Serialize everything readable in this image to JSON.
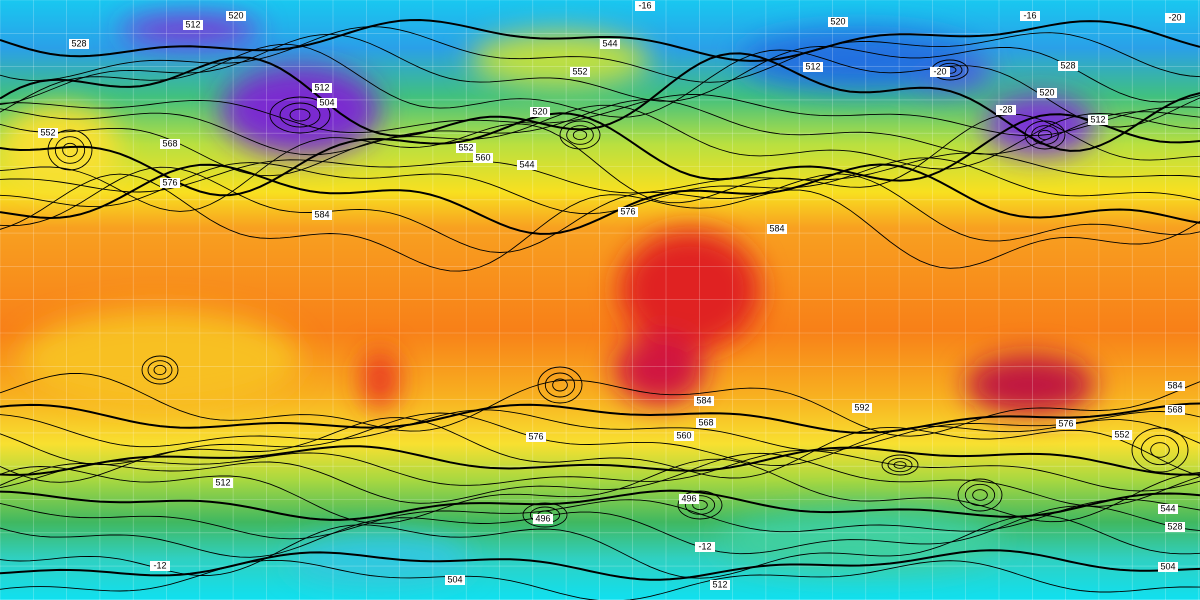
{
  "map": {
    "contour_labels": [
      "520",
      "512",
      "-16",
      "-16",
      "-20",
      "528",
      "544",
      "552",
      "520",
      "512",
      "-20",
      "528",
      "520",
      "-28",
      "512",
      "504",
      "512",
      "552",
      "560",
      "544",
      "520",
      "552",
      "568",
      "576",
      "584",
      "576",
      "584",
      "592",
      "584",
      "568",
      "576",
      "584",
      "560",
      "568",
      "496",
      "496",
      "512",
      "504",
      "512",
      "-12",
      "-12",
      "544",
      "528",
      "504",
      "576",
      "552"
    ]
  }
}
